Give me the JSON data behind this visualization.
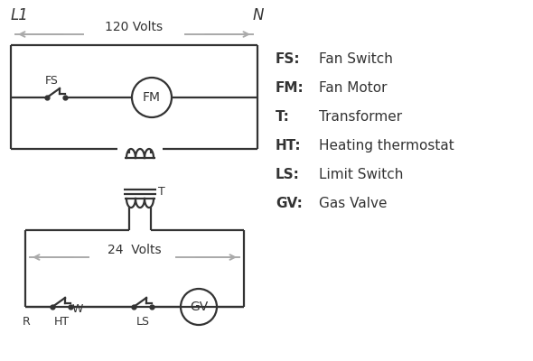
{
  "bg_color": "#ffffff",
  "line_color": "#333333",
  "arrow_color": "#aaaaaa",
  "legend": [
    [
      "FS:",
      "Fan Switch"
    ],
    [
      "FM:",
      "Fan Motor"
    ],
    [
      "T:",
      "Transformer"
    ],
    [
      "HT:",
      "Heating thermostat"
    ],
    [
      "LS:",
      "Limit Switch"
    ],
    [
      "GV:",
      "Gas Valve"
    ]
  ],
  "L1_label": "L1",
  "N_label": "N",
  "volts120": "120 Volts",
  "volts24": "24  Volts",
  "T_label": "T",
  "FS_label": "FS",
  "FM_label": "FM",
  "R_label": "R",
  "W_label": "W",
  "HT_label": "HT",
  "LS_label": "LS",
  "GV_label": "GV"
}
